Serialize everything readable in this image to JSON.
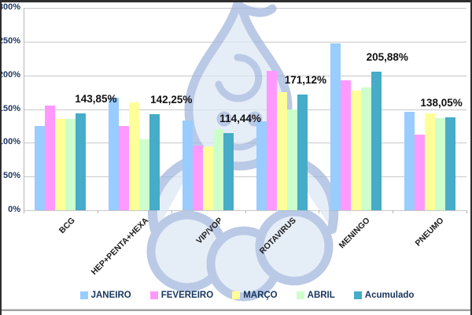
{
  "chart_data": {
    "type": "bar",
    "title": "",
    "categories": [
      "BCG",
      "HEP+PENTA+HEXA",
      "VIP/VOP",
      "ROTAVIRUS",
      "MENINGO",
      "PNEUMO"
    ],
    "series": [
      {
        "name": "JANEIRO",
        "color": "#99CCFF",
        "values": [
          125,
          167,
          133,
          132,
          248,
          146
        ]
      },
      {
        "name": "FEVEREIRO",
        "color": "#FF99FF",
        "values": [
          155,
          125,
          96,
          207,
          193,
          112
        ]
      },
      {
        "name": "MARÇO",
        "color": "#FFFF99",
        "values": [
          135,
          160,
          95,
          175,
          177,
          143
        ]
      },
      {
        "name": "ABRIL",
        "color": "#CCFFCC",
        "values": [
          135,
          105,
          120,
          150,
          182,
          137
        ]
      },
      {
        "name": "Acumulado",
        "color": "#46ACC8",
        "values": [
          143.85,
          142.25,
          114.44,
          171.12,
          205.88,
          138.05
        ]
      }
    ],
    "value_labels": [
      "143,85%",
      "142,25%",
      "114,44%",
      "171,12%",
      "205,88%",
      "138,05%"
    ],
    "value_labels_series": "Acumulado",
    "ylim": [
      0,
      300
    ],
    "yticks": [
      0,
      50,
      100,
      150,
      200,
      250,
      300
    ],
    "ytick_suffix": "%",
    "grid": true,
    "legend_position": "bottom"
  },
  "colors": {
    "gridline": "#c8c8c8",
    "axis": "#b4b4b4",
    "ytick_text": "#1f3864",
    "category_text": "#1a1a1a",
    "value_label_text": "#111111",
    "legend_text": "#17365d",
    "watermark_stroke": "#a3b8dd",
    "watermark_fill": "#dde7f5",
    "frame": "#2e2e2e",
    "bottom_rule": "#a0a0a0"
  }
}
